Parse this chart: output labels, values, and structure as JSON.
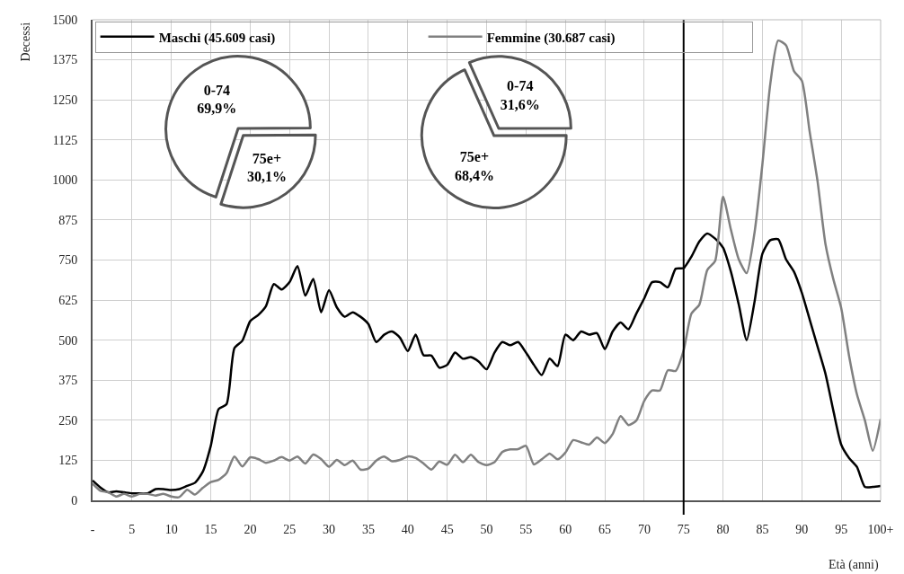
{
  "chart_data": [
    {
      "type": "line",
      "xlabel": "Età (anni)",
      "ylabel": "Decessi",
      "xlim": [
        0,
        100
      ],
      "ylim": [
        0,
        1500
      ],
      "xticks": [
        {
          "value": 0,
          "label": "-"
        },
        5,
        10,
        15,
        20,
        25,
        30,
        35,
        40,
        45,
        50,
        55,
        60,
        65,
        70,
        75,
        80,
        85,
        90,
        95,
        {
          "value": 100,
          "label": "100+"
        }
      ],
      "yticks": [
        0,
        125,
        250,
        375,
        500,
        625,
        750,
        875,
        1000,
        1125,
        1250,
        1375,
        1500
      ],
      "x": [
        0,
        1,
        2,
        3,
        4,
        5,
        6,
        7,
        8,
        9,
        10,
        11,
        12,
        13,
        14,
        15,
        16,
        17,
        18,
        19,
        20,
        21,
        22,
        23,
        24,
        25,
        26,
        27,
        28,
        29,
        30,
        31,
        32,
        33,
        34,
        35,
        36,
        37,
        38,
        39,
        40,
        41,
        42,
        43,
        44,
        45,
        46,
        47,
        48,
        49,
        50,
        51,
        52,
        53,
        54,
        55,
        56,
        57,
        58,
        59,
        60,
        61,
        62,
        63,
        64,
        65,
        66,
        67,
        68,
        69,
        70,
        71,
        72,
        73,
        74,
        75,
        76,
        77,
        78,
        79,
        80,
        81,
        82,
        83,
        84,
        85,
        86,
        87,
        88,
        89,
        90,
        91,
        92,
        93,
        94,
        95,
        96,
        97,
        98,
        99,
        100
      ],
      "series": [
        {
          "name": "Maschi (45.609 casi)",
          "color": "#000000",
          "values": [
            62,
            40,
            25,
            28,
            25,
            22,
            22,
            22,
            35,
            35,
            32,
            35,
            45,
            55,
            90,
            170,
            285,
            300,
            475,
            498,
            559,
            578,
            606,
            675,
            658,
            681,
            731,
            639,
            691,
            587,
            656,
            602,
            573,
            587,
            573,
            550,
            494,
            517,
            527,
            508,
            466,
            517,
            453,
            452,
            414,
            423,
            461,
            442,
            447,
            433,
            409,
            461,
            494,
            484,
            494,
            461,
            423,
            391,
            442,
            419,
            517,
            500,
            527,
            517,
            522,
            472,
            527,
            555,
            534,
            583,
            630,
            681,
            681,
            665,
            723,
            725,
            761,
            808,
            833,
            817,
            789,
            714,
            611,
            500,
            620,
            770,
            812,
            815,
            752,
            714,
            648,
            564,
            480,
            395,
            280,
            174,
            132,
            104,
            42,
            42,
            45
          ]
        },
        {
          "name": "Femmine (30.687 casi)",
          "color": "#808080",
          "values": [
            52,
            30,
            25,
            12,
            20,
            12,
            20,
            20,
            15,
            20,
            12,
            10,
            33,
            18,
            39,
            57,
            64,
            85,
            137,
            106,
            134,
            129,
            117,
            124,
            135,
            124,
            137,
            115,
            143,
            129,
            105,
            126,
            110,
            124,
            96,
            99,
            124,
            137,
            122,
            126,
            137,
            132,
            115,
            96,
            121,
            111,
            142,
            119,
            142,
            119,
            110,
            119,
            151,
            159,
            160,
            170,
            112,
            128,
            146,
            128,
            149,
            188,
            181,
            174,
            196,
            179,
            207,
            263,
            235,
            249,
            310,
            343,
            343,
            406,
            404,
            468,
            583,
            611,
            719,
            747,
            948,
            845,
            752,
            709,
            836,
            1050,
            1300,
            1435,
            1420,
            1340,
            1310,
            1150,
            995,
            800,
            690,
            600,
            450,
            330,
            250,
            155,
            254
          ]
        }
      ],
      "ref_lines": [
        {
          "axis": "x",
          "value": 75,
          "color": "#000000"
        }
      ],
      "grid": true,
      "legend": "top left",
      "marker": "none",
      "line_style": "solid"
    },
    {
      "type": "pie",
      "categories": [
        "0-74",
        "75e+"
      ],
      "values": [
        69.9,
        30.1
      ],
      "value_labels": [
        "69,9%",
        "30,1%"
      ],
      "colors": [
        "#ffffff",
        "#ffffff"
      ]
    },
    {
      "type": "pie",
      "categories": [
        "0-74",
        "75e+"
      ],
      "values": [
        31.6,
        68.4
      ],
      "value_labels": [
        "31,6%",
        "68,4%"
      ],
      "colors": [
        "#ffffff",
        "#ffffff"
      ]
    }
  ]
}
